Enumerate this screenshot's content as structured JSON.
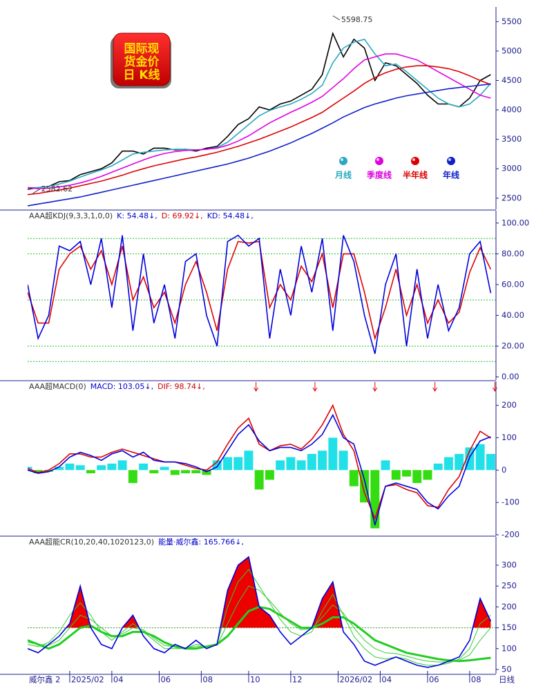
{
  "logo": [
    "国际现",
    "货金价",
    "日 K线"
  ],
  "footer_left": "威尔鑫 2",
  "footer_right": "日线",
  "chart_data": [
    {
      "type": "line",
      "xlim": [
        0,
        44.5
      ],
      "ylim": [
        2310,
        5750
      ],
      "yticks": [
        2500,
        3000,
        3500,
        4000,
        4500,
        5000,
        5500
      ],
      "annotations": [
        {
          "label": "5598.75",
          "x": 29,
          "value": 5598.75
        },
        {
          "label": "2582.62",
          "x": 0.5,
          "value": 2582.62
        }
      ],
      "series": [
        {
          "color": "#000000",
          "values": [
            2650,
            2680,
            2700,
            2780,
            2800,
            2900,
            2950,
            3000,
            3100,
            3300,
            3300,
            3250,
            3350,
            3350,
            3320,
            3330,
            3300,
            3350,
            3380,
            3550,
            3750,
            3850,
            4050,
            4000,
            4100,
            4150,
            4250,
            4350,
            4600,
            5300,
            4900,
            5200,
            5050,
            4500,
            4800,
            4750,
            4600,
            4450,
            4250,
            4100,
            4100,
            4050,
            4200,
            4500,
            4600
          ]
        },
        {
          "name": "月线",
          "color": "#2aa8c0",
          "values": [
            2680,
            2680,
            2700,
            2740,
            2790,
            2860,
            2920,
            2980,
            3050,
            3150,
            3250,
            3280,
            3300,
            3320,
            3330,
            3330,
            3320,
            3330,
            3360,
            3450,
            3600,
            3750,
            3900,
            3990,
            4050,
            4100,
            4180,
            4280,
            4420,
            4800,
            5050,
            5150,
            5200,
            4950,
            4750,
            4780,
            4650,
            4500,
            4350,
            4200,
            4100,
            4050,
            4100,
            4250,
            4450
          ]
        },
        {
          "name": "季度线",
          "color": "#e000e0",
          "values": [
            2680,
            2660,
            2670,
            2690,
            2720,
            2760,
            2810,
            2870,
            2940,
            3010,
            3080,
            3150,
            3210,
            3260,
            3290,
            3310,
            3320,
            3330,
            3350,
            3400,
            3470,
            3560,
            3670,
            3780,
            3870,
            3960,
            4040,
            4130,
            4230,
            4380,
            4530,
            4700,
            4850,
            4900,
            4950,
            4950,
            4900,
            4850,
            4750,
            4650,
            4550,
            4450,
            4350,
            4250,
            4200
          ]
        },
        {
          "name": "半年线",
          "color": "#dd0000",
          "values": [
            2560,
            2580,
            2610,
            2640,
            2670,
            2710,
            2750,
            2790,
            2840,
            2890,
            2950,
            3000,
            3050,
            3090,
            3130,
            3170,
            3200,
            3240,
            3280,
            3330,
            3380,
            3440,
            3500,
            3570,
            3640,
            3710,
            3790,
            3870,
            3960,
            4080,
            4200,
            4320,
            4450,
            4550,
            4630,
            4690,
            4730,
            4750,
            4750,
            4730,
            4700,
            4650,
            4580,
            4500,
            4430
          ]
        },
        {
          "name": "年线",
          "color": "#1020c8",
          "values": [
            2370,
            2400,
            2430,
            2460,
            2490,
            2520,
            2560,
            2600,
            2640,
            2680,
            2720,
            2760,
            2800,
            2840,
            2880,
            2920,
            2960,
            3000,
            3040,
            3080,
            3130,
            3180,
            3240,
            3300,
            3370,
            3440,
            3520,
            3600,
            3690,
            3780,
            3880,
            3960,
            4040,
            4100,
            4150,
            4200,
            4240,
            4270,
            4300,
            4330,
            4360,
            4380,
            4400,
            4420,
            4440
          ]
        }
      ]
    },
    {
      "type": "line",
      "title": "AAA超KDJ(9,3,3,1,0,0)",
      "readouts": [
        {
          "text": "K: 54.48↓,",
          "color": "#0000cc"
        },
        {
          "text": "D: 69.92↓,",
          "color": "#cc0000"
        },
        {
          "text": "KD: 54.48↓,",
          "color": "#0000cc"
        }
      ],
      "xlim": [
        0,
        44.5
      ],
      "ylim": [
        -2,
        108
      ],
      "yticks": [
        {
          "value": 0,
          "label": "0.00"
        },
        {
          "value": 20,
          "label": "20.00"
        },
        {
          "value": 40,
          "label": "40.00"
        },
        {
          "value": 60,
          "label": "60.00"
        },
        {
          "value": 80,
          "label": "80.00"
        },
        {
          "value": 100,
          "label": "100.00"
        }
      ],
      "hlines": [
        90,
        80,
        50,
        20,
        10
      ],
      "hline_color": "#22bb22",
      "series": [
        {
          "color": "#dd0000",
          "values": [
            55,
            35,
            35,
            70,
            80,
            85,
            70,
            82,
            60,
            85,
            50,
            65,
            45,
            55,
            35,
            60,
            75,
            55,
            30,
            70,
            88,
            87,
            88,
            45,
            60,
            50,
            72,
            62,
            80,
            45,
            80,
            80,
            55,
            25,
            45,
            70,
            40,
            60,
            35,
            50,
            35,
            42,
            68,
            84,
            69.92
          ]
        },
        {
          "color": "#0000dd",
          "values": [
            60,
            25,
            40,
            85,
            82,
            88,
            60,
            90,
            45,
            92,
            30,
            80,
            35,
            60,
            25,
            75,
            80,
            40,
            20,
            88,
            92,
            85,
            90,
            25,
            70,
            40,
            85,
            55,
            90,
            30,
            92,
            75,
            40,
            15,
            60,
            80,
            20,
            70,
            25,
            60,
            30,
            45,
            80,
            88,
            54.48
          ]
        }
      ]
    },
    {
      "type": "macd",
      "title": "AAA超MACD(0)",
      "readouts": [
        {
          "text": "MACD: 103.05↓,",
          "color": "#0000cc"
        },
        {
          "text": "DIF: 98.74↓,",
          "color": "#cc0000"
        }
      ],
      "xlim": [
        0,
        44.5
      ],
      "ylim": [
        -202,
        274
      ],
      "yticks": [
        -200,
        -100,
        0,
        100,
        200
      ],
      "signal_x": [
        21.7,
        27.3,
        33,
        38.7,
        44.4
      ],
      "signal_color": "#dd0000",
      "histogram": {
        "pos_color": "#22e0e8",
        "neg_color": "#33dd11",
        "values": [
          10,
          -10,
          -5,
          10,
          20,
          15,
          -10,
          15,
          20,
          30,
          -40,
          20,
          -10,
          10,
          -15,
          -10,
          -10,
          -15,
          30,
          40,
          40,
          60,
          -60,
          -30,
          30,
          40,
          30,
          50,
          60,
          100,
          60,
          -50,
          -100,
          -180,
          30,
          -30,
          -20,
          -40,
          -30,
          20,
          40,
          50,
          70,
          80,
          50
        ]
      },
      "series": [
        {
          "color": "#dd0000",
          "values": [
            5,
            -8,
            0,
            20,
            50,
            50,
            40,
            40,
            55,
            65,
            55,
            45,
            35,
            25,
            25,
            15,
            5,
            0,
            25,
            80,
            130,
            160,
            80,
            60,
            75,
            80,
            65,
            95,
            140,
            200,
            110,
            60,
            -70,
            -150,
            -50,
            -45,
            -60,
            -70,
            -110,
            -115,
            -60,
            -20,
            60,
            120,
            98.74
          ]
        },
        {
          "color": "#0000dd",
          "values": [
            0,
            -10,
            -5,
            10,
            40,
            55,
            45,
            30,
            50,
            60,
            40,
            55,
            30,
            25,
            25,
            20,
            10,
            -5,
            10,
            60,
            110,
            140,
            90,
            60,
            70,
            70,
            60,
            80,
            110,
            170,
            100,
            80,
            -30,
            -170,
            -50,
            -40,
            -50,
            -60,
            -100,
            -120,
            -80,
            -50,
            40,
            90,
            103.05
          ]
        }
      ]
    },
    {
      "type": "cr",
      "title": "AAA超能CR(10,20,40,1020123,0)",
      "readouts": [
        {
          "text": "能量·威尔鑫: 165.766↓,",
          "color": "#0000cc"
        }
      ],
      "xlim": [
        0,
        44.5
      ],
      "xticks": [
        {
          "value": 4,
          "label": "2025/02"
        },
        {
          "value": 8,
          "label": "04"
        },
        {
          "value": 12.5,
          "label": "06"
        },
        {
          "value": 16.5,
          "label": "08"
        },
        {
          "value": 21,
          "label": "10"
        },
        {
          "value": 25,
          "label": "12"
        },
        {
          "value": 29.5,
          "label": "2026/02"
        },
        {
          "value": 33.5,
          "label": "04"
        },
        {
          "value": 38,
          "label": "06"
        },
        {
          "value": 42,
          "label": "08"
        }
      ],
      "ylim": [
        40,
        368
      ],
      "yticks": [
        50,
        100,
        150,
        200,
        250,
        300
      ],
      "hlines": [
        150
      ],
      "hline_color": "#22bb22",
      "fill_above": 150,
      "fill_color": "#ee0000",
      "series": [
        {
          "color": "#22cc22",
          "width": 3,
          "values": [
            120,
            110,
            100,
            110,
            130,
            150,
            155,
            140,
            130,
            130,
            140,
            140,
            130,
            115,
            105,
            100,
            100,
            105,
            110,
            130,
            160,
            190,
            200,
            195,
            180,
            165,
            150,
            150,
            160,
            175,
            175,
            160,
            140,
            120,
            110,
            100,
            90,
            85,
            80,
            75,
            72,
            70,
            72,
            75,
            78
          ]
        },
        {
          "color": "#33cc33",
          "width": 1,
          "values": [
            110,
            105,
            115,
            140,
            180,
            210,
            180,
            140,
            120,
            140,
            160,
            140,
            120,
            100,
            100,
            100,
            110,
            105,
            110,
            200,
            260,
            290,
            250,
            210,
            170,
            140,
            130,
            140,
            190,
            230,
            180,
            130,
            100,
            80,
            75,
            80,
            75,
            65,
            60,
            60,
            65,
            75,
            100,
            160,
            180
          ]
        },
        {
          "color": "#33cc33",
          "width": 1,
          "values": [
            115,
            110,
            108,
            120,
            150,
            180,
            170,
            150,
            130,
            135,
            150,
            145,
            125,
            108,
            104,
            102,
            105,
            105,
            108,
            160,
            210,
            250,
            240,
            215,
            185,
            160,
            145,
            148,
            175,
            205,
            185,
            150,
            120,
            100,
            90,
            88,
            82,
            75,
            70,
            68,
            68,
            72,
            85,
            120,
            150
          ]
        },
        {
          "color": "#0000dd",
          "width": 1.6,
          "values": [
            100,
            90,
            110,
            130,
            160,
            250,
            150,
            110,
            100,
            150,
            180,
            130,
            100,
            90,
            110,
            100,
            120,
            100,
            110,
            240,
            300,
            320,
            200,
            180,
            140,
            110,
            130,
            150,
            220,
            260,
            140,
            110,
            70,
            60,
            70,
            80,
            70,
            60,
            55,
            60,
            70,
            80,
            120,
            220,
            165.766
          ]
        }
      ]
    }
  ]
}
